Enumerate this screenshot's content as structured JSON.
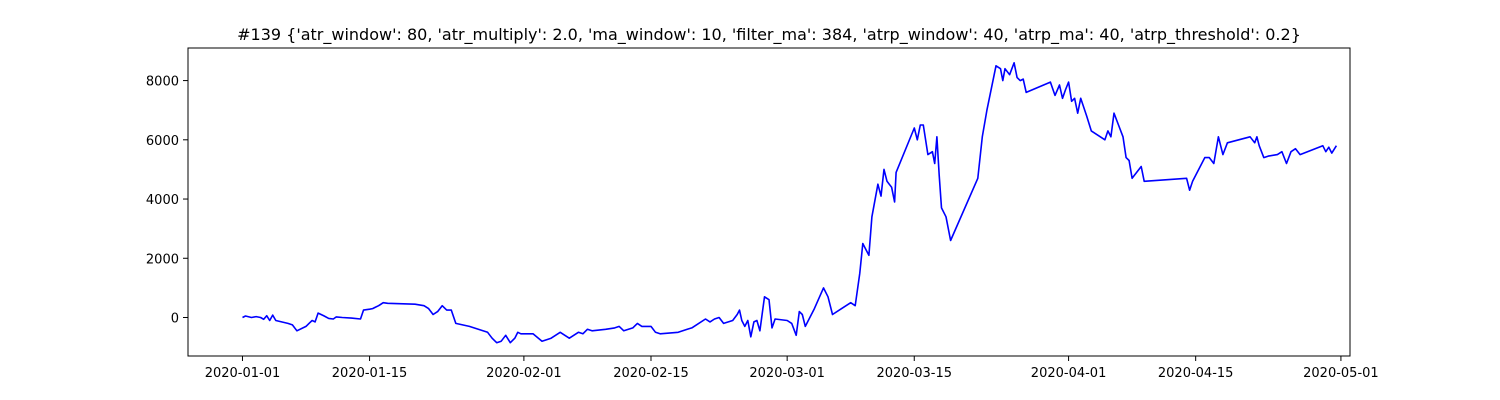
{
  "chart_data": {
    "type": "line",
    "title": "#139 {'atr_window': 80, 'atr_multiply': 2.0, 'ma_window': 10, 'filter_ma': 384, 'atrp_window': 40, 'atrp_ma': 40, 'atrp_threshold': 0.2}",
    "xlabel": "",
    "ylabel": "",
    "x_axis_type": "date",
    "xlim": [
      "2019-12-26",
      "2020-05-02"
    ],
    "ylim": [
      -1300,
      9100
    ],
    "x_ticks": [
      "2020-01-01",
      "2020-01-15",
      "2020-02-01",
      "2020-02-15",
      "2020-03-01",
      "2020-03-15",
      "2020-04-01",
      "2020-04-15",
      "2020-05-01"
    ],
    "y_ticks": [
      0,
      2000,
      4000,
      6000,
      8000
    ],
    "grid": false,
    "legend": "none",
    "line_color": "#0000ff",
    "series": [
      {
        "points": [
          [
            "2020-01-01",
            0
          ],
          [
            "2020-01-01 08:00",
            50
          ],
          [
            "2020-01-02",
            0
          ],
          [
            "2020-01-02 12:00",
            30
          ],
          [
            "2020-01-03",
            0
          ],
          [
            "2020-01-03 08:00",
            -60
          ],
          [
            "2020-01-03 16:00",
            60
          ],
          [
            "2020-01-04",
            -100
          ],
          [
            "2020-01-04 08:00",
            80
          ],
          [
            "2020-01-04 16:00",
            -100
          ],
          [
            "2020-01-06",
            -200
          ],
          [
            "2020-01-06 12:00",
            -250
          ],
          [
            "2020-01-07",
            -450
          ],
          [
            "2020-01-08",
            -300
          ],
          [
            "2020-01-08 08:00",
            -200
          ],
          [
            "2020-01-08 16:00",
            -100
          ],
          [
            "2020-01-09",
            -150
          ],
          [
            "2020-01-09 08:00",
            150
          ],
          [
            "2020-01-09 16:00",
            100
          ],
          [
            "2020-01-10",
            50
          ],
          [
            "2020-01-10 12:00",
            -30
          ],
          [
            "2020-01-11",
            -50
          ],
          [
            "2020-01-11 08:00",
            20
          ],
          [
            "2020-01-12",
            0
          ],
          [
            "2020-01-13",
            -20
          ],
          [
            "2020-01-14",
            -50
          ],
          [
            "2020-01-14 08:00",
            250
          ],
          [
            "2020-01-15",
            280
          ],
          [
            "2020-01-15 08:00",
            300
          ],
          [
            "2020-01-15 16:00",
            350
          ],
          [
            "2020-01-16",
            400
          ],
          [
            "2020-01-16 12:00",
            500
          ],
          [
            "2020-01-17",
            480
          ],
          [
            "2020-01-20",
            450
          ],
          [
            "2020-01-21",
            400
          ],
          [
            "2020-01-21 12:00",
            300
          ],
          [
            "2020-01-22",
            100
          ],
          [
            "2020-01-22 12:00",
            200
          ],
          [
            "2020-01-23",
            400
          ],
          [
            "2020-01-23 12:00",
            250
          ],
          [
            "2020-01-24",
            250
          ],
          [
            "2020-01-24 12:00",
            -200
          ],
          [
            "2020-01-26",
            -300
          ],
          [
            "2020-01-28",
            -500
          ],
          [
            "2020-01-28 12:00",
            -700
          ],
          [
            "2020-01-29",
            -850
          ],
          [
            "2020-01-29 12:00",
            -800
          ],
          [
            "2020-01-30",
            -600
          ],
          [
            "2020-01-30 12:00",
            -850
          ],
          [
            "2020-01-31",
            -700
          ],
          [
            "2020-01-31 08:00",
            -500
          ],
          [
            "2020-01-31 16:00",
            -550
          ],
          [
            "2020-02-02",
            -550
          ],
          [
            "2020-02-03",
            -800
          ],
          [
            "2020-02-04",
            -700
          ],
          [
            "2020-02-05",
            -500
          ],
          [
            "2020-02-06",
            -700
          ],
          [
            "2020-02-07",
            -500
          ],
          [
            "2020-02-07 12:00",
            -550
          ],
          [
            "2020-02-08",
            -400
          ],
          [
            "2020-02-08 12:00",
            -450
          ],
          [
            "2020-02-10",
            -400
          ],
          [
            "2020-02-11",
            -350
          ],
          [
            "2020-02-11 12:00",
            -300
          ],
          [
            "2020-02-12",
            -450
          ],
          [
            "2020-02-13",
            -350
          ],
          [
            "2020-02-13 12:00",
            -200
          ],
          [
            "2020-02-14",
            -300
          ],
          [
            "2020-02-15",
            -300
          ],
          [
            "2020-02-15 12:00",
            -500
          ],
          [
            "2020-02-16",
            -550
          ],
          [
            "2020-02-18",
            -500
          ],
          [
            "2020-02-19",
            -400
          ],
          [
            "2020-02-19 12:00",
            -350
          ],
          [
            "2020-02-20",
            -250
          ],
          [
            "2020-02-21",
            -50
          ],
          [
            "2020-02-21 12:00",
            -150
          ],
          [
            "2020-02-22",
            -50
          ],
          [
            "2020-02-22 12:00",
            0
          ],
          [
            "2020-02-23",
            -200
          ],
          [
            "2020-02-24",
            -100
          ],
          [
            "2020-02-24 12:00",
            100
          ],
          [
            "2020-02-24 18:00",
            250
          ],
          [
            "2020-02-25",
            -100
          ],
          [
            "2020-02-25 08:00",
            -300
          ],
          [
            "2020-02-25 16:00",
            -100
          ],
          [
            "2020-02-26",
            -650
          ],
          [
            "2020-02-26 08:00",
            -150
          ],
          [
            "2020-02-26 16:00",
            -100
          ],
          [
            "2020-02-27",
            -450
          ],
          [
            "2020-02-27 12:00",
            700
          ],
          [
            "2020-02-28",
            600
          ],
          [
            "2020-02-28 08:00",
            -350
          ],
          [
            "2020-02-28 16:00",
            -50
          ],
          [
            "2020-03-01",
            -100
          ],
          [
            "2020-03-01 12:00",
            -200
          ],
          [
            "2020-03-02",
            -600
          ],
          [
            "2020-03-02 08:00",
            200
          ],
          [
            "2020-03-02 16:00",
            100
          ],
          [
            "2020-03-03",
            -300
          ],
          [
            "2020-03-04",
            300
          ],
          [
            "2020-03-05",
            1000
          ],
          [
            "2020-03-05 12:00",
            700
          ],
          [
            "2020-03-06",
            100
          ],
          [
            "2020-03-07",
            300
          ],
          [
            "2020-03-08",
            500
          ],
          [
            "2020-03-08 12:00",
            400
          ],
          [
            "2020-03-09",
            1500
          ],
          [
            "2020-03-09 08:00",
            2500
          ],
          [
            "2020-03-09 16:00",
            2300
          ],
          [
            "2020-03-10",
            2100
          ],
          [
            "2020-03-10 08:00",
            3400
          ],
          [
            "2020-03-11",
            4500
          ],
          [
            "2020-03-11 08:00",
            4100
          ],
          [
            "2020-03-11 16:00",
            5000
          ],
          [
            "2020-03-12",
            4600
          ],
          [
            "2020-03-12 12:00",
            4400
          ],
          [
            "2020-03-12 20:00",
            3900
          ],
          [
            "2020-03-13",
            4900
          ],
          [
            "2020-03-15",
            6400
          ],
          [
            "2020-03-15 08:00",
            6000
          ],
          [
            "2020-03-15 16:00",
            6500
          ],
          [
            "2020-03-16",
            6500
          ],
          [
            "2020-03-16 12:00",
            5500
          ],
          [
            "2020-03-17",
            5600
          ],
          [
            "2020-03-17 06:00",
            5200
          ],
          [
            "2020-03-17 12:00",
            6100
          ],
          [
            "2020-03-17 18:00",
            4800
          ],
          [
            "2020-03-18",
            3700
          ],
          [
            "2020-03-18 12:00",
            3400
          ],
          [
            "2020-03-19",
            2600
          ],
          [
            "2020-03-22",
            4700
          ],
          [
            "2020-03-22 12:00",
            6100
          ],
          [
            "2020-03-23",
            7000
          ],
          [
            "2020-03-24",
            8500
          ],
          [
            "2020-03-24 12:00",
            8400
          ],
          [
            "2020-03-24 18:00",
            8000
          ],
          [
            "2020-03-25",
            8400
          ],
          [
            "2020-03-25 12:00",
            8200
          ],
          [
            "2020-03-26",
            8600
          ],
          [
            "2020-03-26 08:00",
            8100
          ],
          [
            "2020-03-26 16:00",
            8000
          ],
          [
            "2020-03-27",
            8050
          ],
          [
            "2020-03-27 08:00",
            7600
          ],
          [
            "2020-03-30",
            7950
          ],
          [
            "2020-03-30 12:00",
            7500
          ],
          [
            "2020-03-31",
            7850
          ],
          [
            "2020-03-31 08:00",
            7400
          ],
          [
            "2020-03-31 16:00",
            7700
          ],
          [
            "2020-04-01",
            7950
          ],
          [
            "2020-04-01 08:00",
            7300
          ],
          [
            "2020-04-01 16:00",
            7400
          ],
          [
            "2020-04-02",
            6900
          ],
          [
            "2020-04-02 08:00",
            7400
          ],
          [
            "2020-04-03",
            6800
          ],
          [
            "2020-04-03 12:00",
            6300
          ],
          [
            "2020-04-05",
            6000
          ],
          [
            "2020-04-05 08:00",
            6300
          ],
          [
            "2020-04-05 16:00",
            6100
          ],
          [
            "2020-04-06",
            6900
          ],
          [
            "2020-04-06 12:00",
            6500
          ],
          [
            "2020-04-07",
            6100
          ],
          [
            "2020-04-07 08:00",
            5400
          ],
          [
            "2020-04-07 16:00",
            5300
          ],
          [
            "2020-04-08",
            4700
          ],
          [
            "2020-04-09",
            5100
          ],
          [
            "2020-04-09 08:00",
            4600
          ],
          [
            "2020-04-14",
            4700
          ],
          [
            "2020-04-14 08:00",
            4300
          ],
          [
            "2020-04-14 16:00",
            4600
          ],
          [
            "2020-04-15",
            4800
          ],
          [
            "2020-04-16",
            5400
          ],
          [
            "2020-04-16 12:00",
            5400
          ],
          [
            "2020-04-17",
            5200
          ],
          [
            "2020-04-17 12:00",
            6100
          ],
          [
            "2020-04-18",
            5500
          ],
          [
            "2020-04-18 12:00",
            5900
          ],
          [
            "2020-04-21",
            6100
          ],
          [
            "2020-04-21 12:00",
            5900
          ],
          [
            "2020-04-21 18:00",
            6100
          ],
          [
            "2020-04-22",
            5800
          ],
          [
            "2020-04-22 12:00",
            5400
          ],
          [
            "2020-04-23",
            5450
          ],
          [
            "2020-04-24",
            5500
          ],
          [
            "2020-04-24 12:00",
            5600
          ],
          [
            "2020-04-25",
            5200
          ],
          [
            "2020-04-25 12:00",
            5600
          ],
          [
            "2020-04-26",
            5700
          ],
          [
            "2020-04-26 12:00",
            5500
          ],
          [
            "2020-04-29",
            5800
          ],
          [
            "2020-04-29 08:00",
            5600
          ],
          [
            "2020-04-29 16:00",
            5750
          ],
          [
            "2020-04-30",
            5550
          ],
          [
            "2020-04-30 12:00",
            5800
          ]
        ]
      }
    ]
  }
}
